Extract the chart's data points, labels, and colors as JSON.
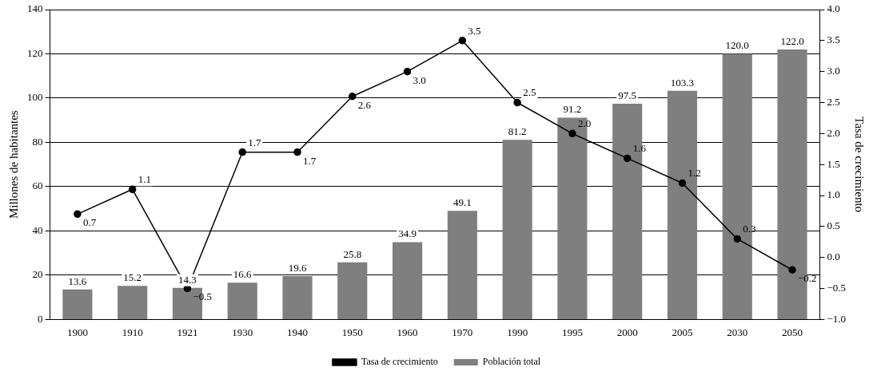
{
  "chart_data": {
    "type": "bar",
    "ylabel": "Millones de habitantes",
    "y2label": "Tasa de crecimiento",
    "categories": [
      "1900",
      "1910",
      "1921",
      "1930",
      "1940",
      "1950",
      "1960",
      "1970",
      "1990",
      "1995",
      "2000",
      "2005",
      "2030",
      "2050"
    ],
    "series": [
      {
        "name": "Población total",
        "color": "#7f7f7f",
        "values": [
          13.6,
          15.2,
          14.3,
          16.6,
          19.6,
          25.8,
          34.9,
          49.1,
          81.2,
          91.2,
          97.5,
          103.3,
          120.0,
          122.0
        ],
        "value_labels": [
          "13.6",
          "15.2",
          "14.3",
          "16.6",
          "19.6",
          "25.8",
          "34.9",
          "49.1",
          "81.2",
          "91.2",
          "97.5",
          "103.3",
          "120.0",
          "122.0"
        ]
      },
      {
        "name": "Tasa de crecimiento",
        "type": "line",
        "axis": "y2",
        "color": "#000000",
        "values": [
          0.7,
          1.1,
          -0.5,
          1.7,
          1.7,
          2.6,
          3.0,
          3.5,
          2.5,
          2.0,
          1.6,
          1.2,
          0.3,
          -0.2
        ],
        "value_labels": [
          "0.7",
          "1.1",
          "−0.5",
          "1.7",
          "1.7",
          "2.6",
          "3.0",
          "3.5",
          "2.5",
          "2.0",
          "1.6",
          "1.2",
          "0.3",
          "−0.2"
        ]
      }
    ],
    "ylim": [
      0,
      140
    ],
    "yticks": [
      0,
      20,
      40,
      60,
      80,
      100,
      120,
      140
    ],
    "y2lim": [
      -1,
      4
    ],
    "y2ticks": [
      {
        "value": -1,
        "label": "−1.0"
      },
      {
        "value": -0.5,
        "label": "−0.5"
      },
      {
        "value": 0,
        "label": "0.0"
      },
      {
        "value": 0.5,
        "label": "0.5"
      },
      {
        "value": 1,
        "label": "1.0"
      },
      {
        "value": 1.5,
        "label": "1.5"
      },
      {
        "value": 2,
        "label": "2.0"
      },
      {
        "value": 2.5,
        "label": "2.5"
      },
      {
        "value": 3,
        "label": "3.0"
      },
      {
        "value": 3.5,
        "label": "3.5"
      },
      {
        "value": 4,
        "label": "4.0"
      }
    ],
    "grid": "y",
    "legend": "bottom",
    "marker": "circle",
    "line_style": "solid"
  }
}
